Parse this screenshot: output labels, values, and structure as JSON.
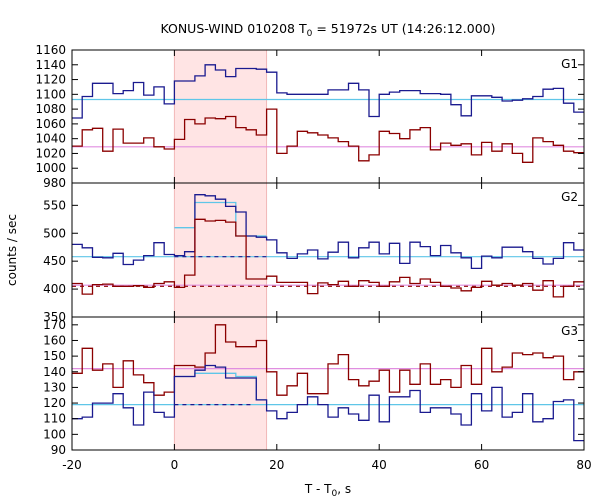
{
  "chart_data": {
    "type": "line",
    "title_main": "KONUS-WIND 010208 T",
    "title_sub": "0",
    "title_rest": " = 51972s UT (14:26:12.000)",
    "xlabel_main": "T - T",
    "xlabel_sub": "0",
    "xlabel_rest": ", s",
    "ylabel": "counts / sec",
    "xlim": [
      -20,
      80
    ],
    "x_ticks": [
      -20,
      0,
      20,
      40,
      60,
      80
    ],
    "x_tick_labels": [
      "-20",
      "0",
      "20",
      "40",
      "60",
      "80"
    ],
    "highlight_interval": [
      0,
      18
    ],
    "highlight_color": "#ffe4e4",
    "bin_edges": [
      -20,
      -18,
      -16,
      -14,
      -12,
      -10,
      -8,
      -6,
      -4,
      -2,
      0,
      2,
      4,
      6,
      8,
      10,
      12,
      14,
      16,
      18,
      20,
      22,
      24,
      26,
      28,
      30,
      32,
      34,
      36,
      38,
      40,
      42,
      44,
      46,
      48,
      50,
      52,
      54,
      56,
      58,
      60,
      62,
      64,
      66,
      68,
      70,
      72,
      74,
      76,
      78,
      80
    ],
    "panels": [
      {
        "name": "G1",
        "ylim": [
          980,
          1160
        ],
        "y_ticks": [
          980,
          1000,
          1020,
          1040,
          1060,
          1080,
          1100,
          1120,
          1140,
          1160
        ],
        "y_tick_labels": [
          "980",
          "1000",
          "1020",
          "1040",
          "1060",
          "1080",
          "1100",
          "1120",
          "1140",
          "1160"
        ],
        "series": [
          {
            "color": "#1a1a8f",
            "values": [
              1068,
              1097,
              1115,
              1115,
              1101,
              1105,
              1116,
              1099,
              1110,
              1087,
              1118,
              1118,
              1125,
              1140,
              1133,
              1124,
              1135,
              1135,
              1134,
              1130,
              1102,
              1100,
              1100,
              1100,
              1100,
              1106,
              1106,
              1115,
              1106,
              1070,
              1100,
              1103,
              1105,
              1105,
              1101,
              1101,
              1100,
              1086,
              1071,
              1098,
              1098,
              1096,
              1091,
              1092,
              1094,
              1097,
              1107,
              1108,
              1088,
              1076
            ]
          },
          {
            "color": "#8b0000",
            "values": [
              1030,
              1052,
              1054,
              1023,
              1053,
              1034,
              1034,
              1041,
              1029,
              1026,
              1039,
              1066,
              1060,
              1068,
              1067,
              1070,
              1055,
              1052,
              1045,
              1080,
              1020,
              1030,
              1050,
              1048,
              1045,
              1041,
              1036,
              1030,
              1010,
              1018,
              1050,
              1047,
              1040,
              1052,
              1055,
              1025,
              1034,
              1031,
              1033,
              1018,
              1035,
              1023,
              1033,
              1020,
              1008,
              1041,
              1036,
              1031,
              1023,
              1021
            ]
          }
        ],
        "fits": [
          {
            "color": "#5fc6e8",
            "y_from": 1093,
            "y_to": 1093
          }
        ],
        "baselines": [
          {
            "color": "#e08ee0",
            "y": 1029
          }
        ]
      },
      {
        "name": "G2",
        "ylim": [
          350,
          590
        ],
        "y_ticks": [
          350,
          400,
          450,
          500,
          550
        ],
        "y_tick_labels": [
          "350",
          "400",
          "450",
          "500",
          "550"
        ],
        "series": [
          {
            "color": "#1a1a8f",
            "values": [
              480,
              474,
              457,
              456,
              464,
              444,
              452,
              460,
              483,
              462,
              460,
              467,
              569,
              567,
              561,
              548,
              538,
              495,
              493,
              488,
              465,
              455,
              463,
              470,
              454,
              466,
              484,
              456,
              474,
              484,
              463,
              482,
              446,
              484,
              476,
              460,
              478,
              465,
              456,
              437,
              459,
              456,
              475,
              475,
              467,
              455,
              445,
              455,
              483,
              470
            ]
          },
          {
            "color": "#8b0000",
            "values": [
              410,
              391,
              408,
              409,
              405,
              405,
              406,
              403,
              410,
              413,
              403,
              425,
              525,
              522,
              523,
              520,
              495,
              418,
              418,
              423,
              412,
              412,
              412,
              392,
              411,
              408,
              414,
              405,
              415,
              412,
              405,
              413,
              421,
              410,
              418,
              412,
              405,
              402,
              397,
              403,
              414,
              407,
              410,
              407,
              410,
              398,
              415,
              386,
              405,
              413
            ]
          }
        ],
        "fits": [
          {
            "color": "#5fc6e8",
            "step_values": [
              null,
              null,
              null,
              null,
              null,
              null,
              null,
              null,
              null,
              null,
              510,
              510,
              555,
              555,
              555,
              555,
              495,
              495,
              495,
              null
            ]
          }
        ],
        "baselines": [
          {
            "color": "#5fc6e8",
            "y": 458
          },
          {
            "color": "#e08ee0",
            "y": 407
          }
        ],
        "dashed": [
          {
            "color": "#1a1a8f",
            "y": 458,
            "x_from": 0,
            "x_to": 18
          },
          {
            "color": "#8b0000",
            "y": 405,
            "x_from": -20,
            "x_to": 80
          }
        ]
      },
      {
        "name": "G3",
        "ylim": [
          90,
          175
        ],
        "y_ticks": [
          90,
          100,
          110,
          120,
          130,
          140,
          150,
          160,
          170
        ],
        "y_tick_labels": [
          "90",
          "100",
          "110",
          "120",
          "130",
          "140",
          "150",
          "160",
          "170"
        ],
        "series": [
          {
            "color": "#8b0000",
            "values": [
              139,
              155,
              141,
              145,
              130,
              147,
              138,
              133,
              125,
              127,
              144,
              144,
              143,
              152,
              170,
              159,
              156,
              156,
              160,
              140,
              125,
              131,
              139,
              126,
              126,
              145,
              151,
              135,
              131,
              134,
              141,
              127,
              141,
              132,
              145,
              132,
              135,
              130,
              144,
              132,
              155,
              140,
              143,
              152,
              151,
              152,
              149,
              150,
              135,
              140
            ]
          },
          {
            "color": "#1a1a8f",
            "values": [
              110,
              111,
              120,
              120,
              126,
              117,
              106,
              127,
              114,
              111,
              137,
              137,
              141,
              144,
              143,
              136,
              136,
              136,
              122,
              115,
              110,
              114,
              119,
              124,
              119,
              111,
              117,
              113,
              109,
              125,
              108,
              124,
              124,
              128,
              114,
              117,
              117,
              113,
              106,
              126,
              115,
              130,
              111,
              114,
              126,
              108,
              110,
              121,
              122,
              96
            ]
          }
        ],
        "fits": [
          {
            "color": "#5fc6e8",
            "step_values": [
              null,
              null,
              null,
              null,
              null,
              null,
              null,
              null,
              null,
              null,
              137,
              137,
              139,
              139,
              139,
              139,
              137,
              137,
              122,
              null
            ]
          }
        ],
        "baselines": [
          {
            "color": "#e08ee0",
            "y": 142
          },
          {
            "color": "#5fc6e8",
            "y": 119
          }
        ],
        "dashed": [
          {
            "color": "#1a1a8f",
            "y": 119,
            "x_from": 0,
            "x_to": 15
          }
        ]
      }
    ]
  }
}
